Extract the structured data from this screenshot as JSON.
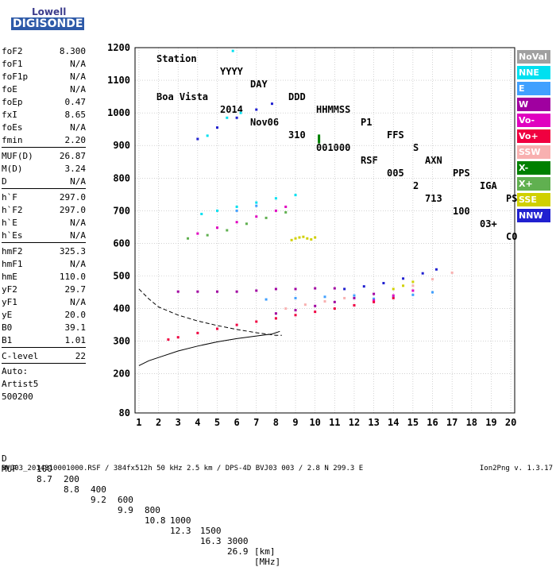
{
  "logo": {
    "line1": "Lowell",
    "line2": "DIGISONDE"
  },
  "header": {
    "labels": [
      "Station",
      "YYYY",
      "DAY",
      "DDD",
      "HHMMSS",
      "P1",
      "FFS",
      "S",
      "AXN",
      "PPS",
      "IGA",
      "PS"
    ],
    "values": [
      "Boa Vista",
      "2014",
      "Nov06",
      "310",
      "001000",
      "RSF",
      "005",
      "2",
      "713",
      "100",
      "03+",
      "C0"
    ]
  },
  "params": {
    "group1": [
      {
        "name": "foF2",
        "value": "8.300"
      },
      {
        "name": "foF1",
        "value": "N/A"
      },
      {
        "name": "foF1p",
        "value": "N/A"
      },
      {
        "name": "foE",
        "value": "N/A"
      },
      {
        "name": "foEp",
        "value": "0.47"
      },
      {
        "name": "fxI",
        "value": "8.65"
      },
      {
        "name": "foEs",
        "value": "N/A"
      },
      {
        "name": "fmin",
        "value": "2.20"
      }
    ],
    "group2": [
      {
        "name": "MUF(D)",
        "value": "26.87"
      },
      {
        "name": "M(D)",
        "value": "3.24"
      },
      {
        "name": "D",
        "value": "N/A"
      }
    ],
    "group3": [
      {
        "name": "h`F",
        "value": "297.0"
      },
      {
        "name": "h`F2",
        "value": "297.0"
      },
      {
        "name": "h`E",
        "value": "N/A"
      },
      {
        "name": "h`Es",
        "value": "N/A"
      }
    ],
    "group4": [
      {
        "name": "hmF2",
        "value": "325.3"
      },
      {
        "name": "hmF1",
        "value": "N/A"
      },
      {
        "name": "hmE",
        "value": "110.0"
      },
      {
        "name": "yF2",
        "value": "29.7"
      },
      {
        "name": "yF1",
        "value": "N/A"
      },
      {
        "name": "yE",
        "value": "20.0"
      },
      {
        "name": "B0",
        "value": "39.1"
      },
      {
        "name": "B1",
        "value": "1.01"
      }
    ],
    "group5": [
      {
        "name": "C-level",
        "value": "22"
      }
    ],
    "auto": [
      "Auto:",
      "Artist5",
      "500200"
    ]
  },
  "legend": [
    {
      "label": "NoVal",
      "color": "#a0a0a0"
    },
    {
      "label": "NNE",
      "color": "#00e0f0"
    },
    {
      "label": "E",
      "color": "#40a0ff"
    },
    {
      "label": "W",
      "color": "#a000a0"
    },
    {
      "label": "Vo-",
      "color": "#e000c0"
    },
    {
      "label": "Vo+",
      "color": "#f00040"
    },
    {
      "label": "SSW",
      "color": "#f8b0b0"
    },
    {
      "label": "X-",
      "color": "#008000"
    },
    {
      "label": "X+",
      "color": "#60b050"
    },
    {
      "label": "SSE",
      "color": "#d0d000"
    },
    {
      "label": "NNW",
      "color": "#2020d0"
    }
  ],
  "muf_table": {
    "d_label": "D",
    "d_values": [
      "100",
      "200",
      "400",
      "600",
      "800",
      "1000",
      "1500",
      "3000"
    ],
    "d_unit": "[km]",
    "muf_label": "MUF",
    "muf_values": [
      "8.7",
      "8.8",
      "9.2",
      "9.9",
      "10.8",
      "12.3",
      "16.3",
      "26.9"
    ],
    "muf_unit": "[MHz]"
  },
  "footer": "BVJ03_2014310001000.RSF / 384fx512h 50 kHz 2.5 km / DPS-4D BVJ03 003 / 2.8 N 299.3 E",
  "version": "Ion2Png v. 1.3.17",
  "chart_data": {
    "type": "scatter",
    "x_ticks": [
      1,
      2,
      3,
      4,
      5,
      6,
      7,
      8,
      9,
      10,
      11,
      12,
      13,
      14,
      15,
      16,
      17,
      18,
      19,
      20
    ],
    "y_ticks": [
      80,
      200,
      300,
      400,
      500,
      600,
      700,
      800,
      900,
      1000,
      1100,
      1200
    ],
    "xlim": [
      0.8,
      20.2
    ],
    "ylim": [
      80,
      1200
    ],
    "grid": true,
    "traces": [
      {
        "name": "NNE",
        "color": "#00e0f0",
        "points": [
          [
            4.2,
            690
          ],
          [
            5.0,
            700
          ],
          [
            6.0,
            712
          ],
          [
            7.0,
            725
          ],
          [
            8.0,
            738
          ],
          [
            9.0,
            748
          ],
          [
            4.5,
            930
          ],
          [
            5.5,
            985
          ],
          [
            6.2,
            1000
          ],
          [
            5.8,
            1190
          ]
        ]
      },
      {
        "name": "E",
        "color": "#40a0ff",
        "points": [
          [
            7.5,
            428
          ],
          [
            9.0,
            432
          ],
          [
            10.5,
            436
          ],
          [
            12.0,
            440
          ],
          [
            13.0,
            430
          ],
          [
            14.0,
            436
          ],
          [
            15.0,
            442
          ],
          [
            16.0,
            450
          ],
          [
            6.0,
            700
          ],
          [
            7.0,
            715
          ]
        ]
      },
      {
        "name": "W",
        "color": "#a000a0",
        "points": [
          [
            3.0,
            452
          ],
          [
            4.0,
            452
          ],
          [
            5.0,
            452
          ],
          [
            6.0,
            452
          ],
          [
            7.0,
            455
          ],
          [
            8.0,
            460
          ],
          [
            9.0,
            460
          ],
          [
            10.0,
            462
          ],
          [
            11.0,
            462
          ],
          [
            8.0,
            385
          ],
          [
            9.0,
            395
          ],
          [
            10.0,
            408
          ],
          [
            11.0,
            420
          ],
          [
            12.0,
            432
          ],
          [
            13.0,
            445
          ]
        ]
      },
      {
        "name": "Vo-",
        "color": "#e000c0",
        "points": [
          [
            4.0,
            630
          ],
          [
            5.0,
            648
          ],
          [
            6.0,
            665
          ],
          [
            7.0,
            682
          ],
          [
            8.0,
            700
          ],
          [
            8.5,
            712
          ],
          [
            12.0,
            410
          ],
          [
            13.0,
            425
          ],
          [
            14.0,
            440
          ],
          [
            15.0,
            455
          ]
        ]
      },
      {
        "name": "Vo+",
        "color": "#f00040",
        "points": [
          [
            2.5,
            305
          ],
          [
            3.0,
            312
          ],
          [
            4.0,
            325
          ],
          [
            5.0,
            338
          ],
          [
            6.0,
            350
          ],
          [
            7.0,
            360
          ],
          [
            8.0,
            370
          ],
          [
            9.0,
            380
          ],
          [
            10.0,
            390
          ],
          [
            11.0,
            400
          ],
          [
            12.0,
            410
          ],
          [
            13.0,
            420
          ],
          [
            14.0,
            432
          ]
        ]
      },
      {
        "name": "SSW",
        "color": "#f8b0b0",
        "points": [
          [
            8.5,
            400
          ],
          [
            9.5,
            412
          ],
          [
            10.5,
            422
          ],
          [
            11.5,
            432
          ],
          [
            15.0,
            470
          ],
          [
            16.0,
            490
          ],
          [
            17.0,
            510
          ]
        ]
      },
      {
        "name": "X-",
        "color": "#008000",
        "points": [
          [
            10.2,
            910
          ],
          [
            10.2,
            915
          ],
          [
            10.2,
            920
          ],
          [
            10.2,
            925
          ],
          [
            10.2,
            930
          ]
        ]
      },
      {
        "name": "X+",
        "color": "#60b050",
        "points": [
          [
            3.5,
            615
          ],
          [
            4.5,
            625
          ],
          [
            5.5,
            640
          ],
          [
            6.5,
            660
          ],
          [
            7.5,
            678
          ],
          [
            8.5,
            695
          ]
        ]
      },
      {
        "name": "SSE",
        "color": "#d0d000",
        "points": [
          [
            8.8,
            610
          ],
          [
            9.0,
            615
          ],
          [
            9.2,
            618
          ],
          [
            9.4,
            620
          ],
          [
            9.6,
            615
          ],
          [
            9.8,
            612
          ],
          [
            10.0,
            618
          ],
          [
            14.0,
            460
          ],
          [
            14.5,
            470
          ],
          [
            15.0,
            482
          ]
        ]
      },
      {
        "name": "NNW",
        "color": "#2020d0",
        "points": [
          [
            4.0,
            920
          ],
          [
            5.0,
            955
          ],
          [
            6.0,
            985
          ],
          [
            7.0,
            1010
          ],
          [
            7.8,
            1028
          ],
          [
            11.5,
            460
          ],
          [
            12.5,
            468
          ],
          [
            13.5,
            478
          ],
          [
            14.5,
            492
          ],
          [
            15.5,
            508
          ],
          [
            16.2,
            520
          ]
        ]
      }
    ],
    "profile_curve": [
      [
        1.0,
        225
      ],
      [
        1.5,
        240
      ],
      [
        2.0,
        250
      ],
      [
        3.0,
        270
      ],
      [
        4.0,
        285
      ],
      [
        5.0,
        298
      ],
      [
        6.0,
        308
      ],
      [
        7.0,
        316
      ],
      [
        7.8,
        322
      ],
      [
        8.2,
        330
      ]
    ],
    "extrapolation_curve": [
      [
        1.0,
        460
      ],
      [
        1.5,
        430
      ],
      [
        2.0,
        405
      ],
      [
        3.0,
        380
      ],
      [
        4.0,
        362
      ],
      [
        5.0,
        348
      ],
      [
        6.0,
        336
      ],
      [
        7.0,
        326
      ],
      [
        8.0,
        318
      ],
      [
        8.3,
        318
      ]
    ]
  }
}
